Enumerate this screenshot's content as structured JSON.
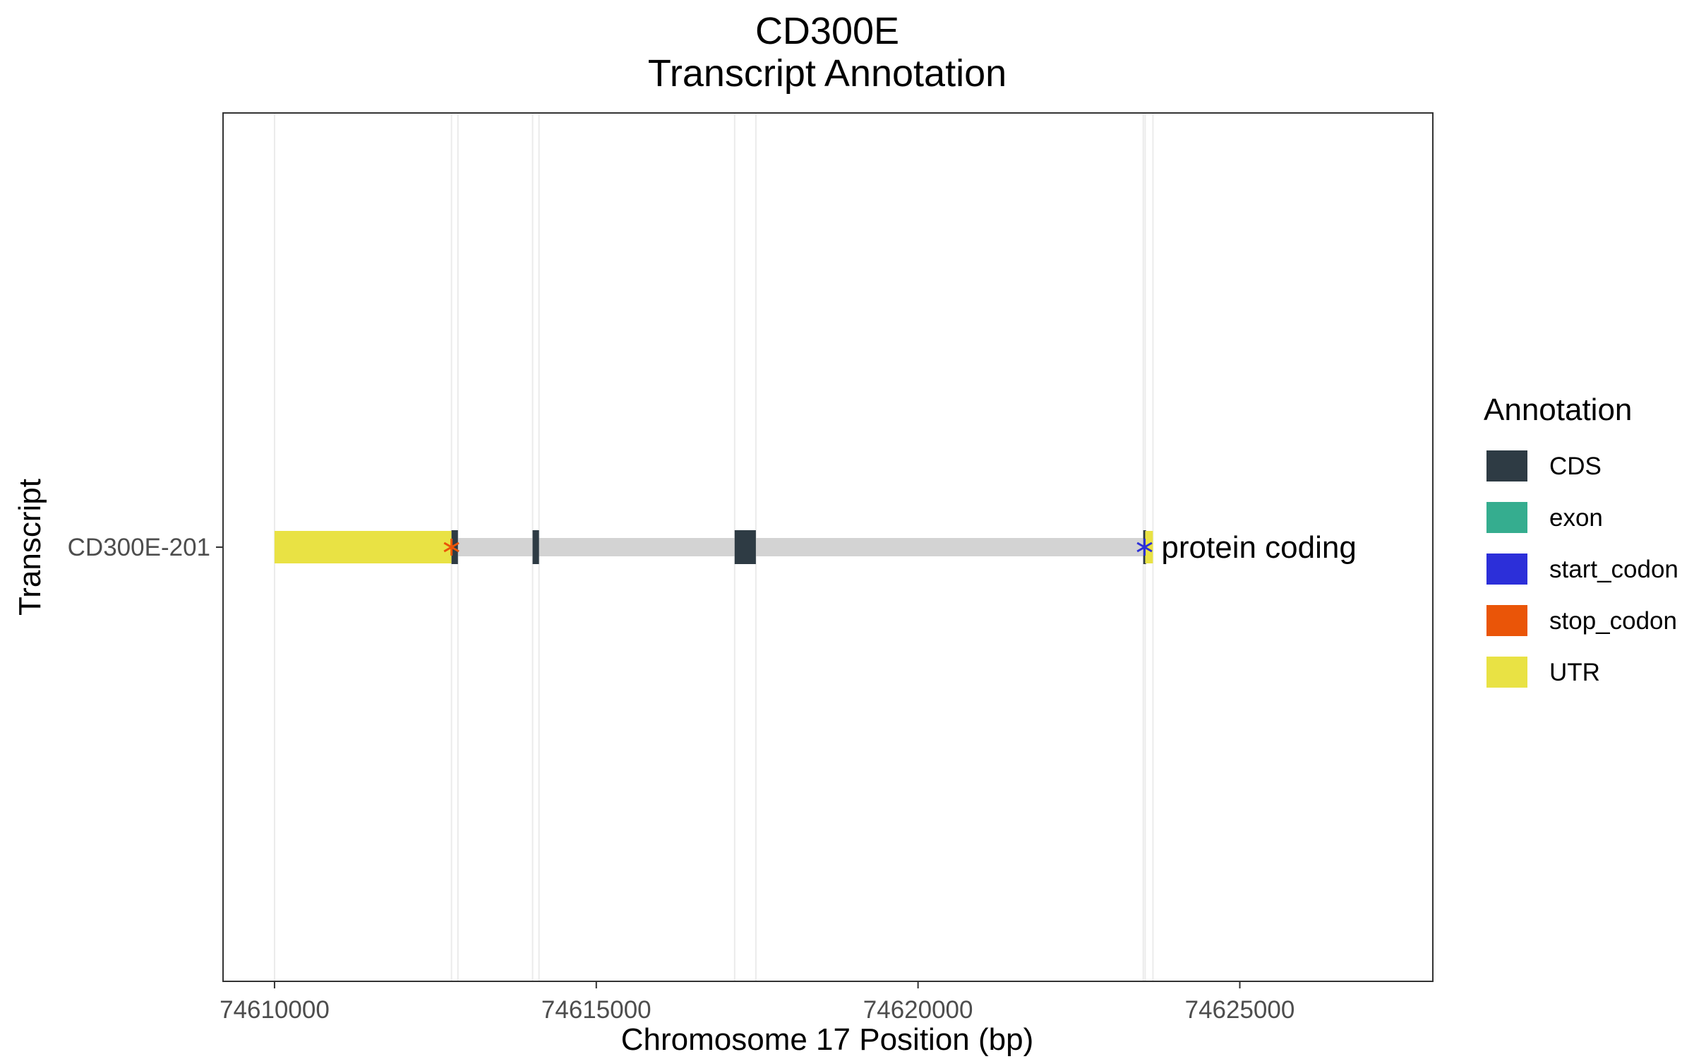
{
  "chart_data": {
    "type": "gene-track",
    "title": "CD300E",
    "subtitle": "Transcript Annotation",
    "xlabel": "Chromosome 17 Position (bp)",
    "ylabel": "Transcript",
    "xlim": [
      74609200,
      74628000
    ],
    "x_ticks": [
      74610000,
      74615000,
      74620000,
      74625000
    ],
    "x_tick_labels": [
      "74610000",
      "74615000",
      "74620000",
      "74625000"
    ],
    "grid": true,
    "transcripts": [
      {
        "name": "CD300E-201",
        "biotype_label": "protein coding",
        "span": [
          74610000,
          74623650
        ],
        "features": [
          {
            "type": "UTR",
            "start": 74610000,
            "end": 74612750
          },
          {
            "type": "CDS",
            "start": 74612750,
            "end": 74612850
          },
          {
            "type": "CDS",
            "start": 74614010,
            "end": 74614110
          },
          {
            "type": "CDS",
            "start": 74617150,
            "end": 74617480
          },
          {
            "type": "CDS",
            "start": 74623500,
            "end": 74623530
          },
          {
            "type": "UTR",
            "start": 74623530,
            "end": 74623650
          }
        ],
        "stop_codon": 74612750,
        "start_codon": 74623520
      }
    ],
    "legend": {
      "title": "Annotation",
      "placement": "right",
      "entries": [
        {
          "label": "CDS",
          "color": "#2e3b44"
        },
        {
          "label": "exon",
          "color": "#35ad8f"
        },
        {
          "label": "start_codon",
          "color": "#2c2fd9"
        },
        {
          "label": "stop_codon",
          "color": "#ea5508"
        },
        {
          "label": "UTR",
          "color": "#e9e244"
        }
      ]
    },
    "intron_color": "#d3d3d3"
  }
}
